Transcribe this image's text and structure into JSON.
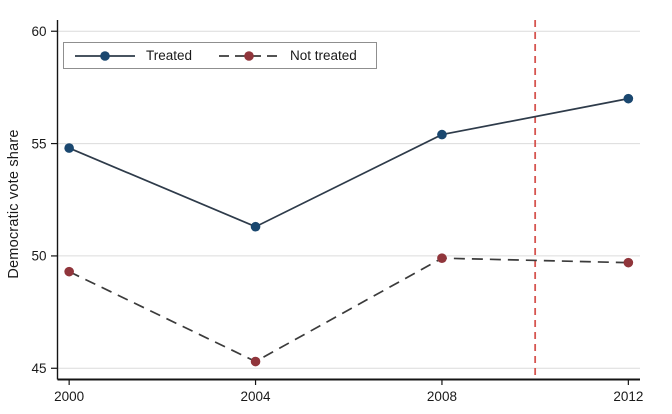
{
  "figure": {
    "y_axis_title": "Democratic vote share",
    "background": "#ffffff"
  },
  "legend": {
    "border_color": "#8f8f8f",
    "entries": [
      "Treated",
      "Not treated"
    ]
  },
  "colors": {
    "grid": "#dcdcdc",
    "axis": "#141414",
    "text": "#1a1a1a",
    "reference_line": "#d65550",
    "treated_line": "#2e3b4a",
    "treated_marker": "#1a476f",
    "not_treated_line": "#3b3b3b",
    "not_treated_marker": "#90353b"
  },
  "chart_data": {
    "type": "line",
    "title": "",
    "xlabel": "",
    "ylabel": "Democratic vote share",
    "x": [
      2000,
      2004,
      2008,
      2012
    ],
    "x_tick_labels": [
      "2000",
      "2004",
      "2008",
      "2012"
    ],
    "y_ticks": [
      45,
      50,
      55,
      60
    ],
    "y_tick_labels": [
      "45",
      "50",
      "55",
      "60"
    ],
    "xlim": [
      1999.75,
      2012.25
    ],
    "ylim": [
      44.5,
      60.5
    ],
    "grid": "horizontal-only",
    "legend_position": "top-left-inside",
    "series": [
      {
        "name": "Treated",
        "values": [
          54.8,
          51.3,
          55.4,
          57.0
        ],
        "line_style": "solid",
        "line_color": "#2e3b4a",
        "marker": "circle",
        "marker_color": "#1a476f"
      },
      {
        "name": "Not treated",
        "values": [
          49.3,
          45.3,
          49.9,
          49.7
        ],
        "line_style": "dashed",
        "line_color": "#3b3b3b",
        "marker": "circle",
        "marker_color": "#90353b"
      }
    ],
    "reference_line": {
      "axis": "x",
      "value": 2010,
      "style": "dashed",
      "color": "#d65550"
    }
  }
}
